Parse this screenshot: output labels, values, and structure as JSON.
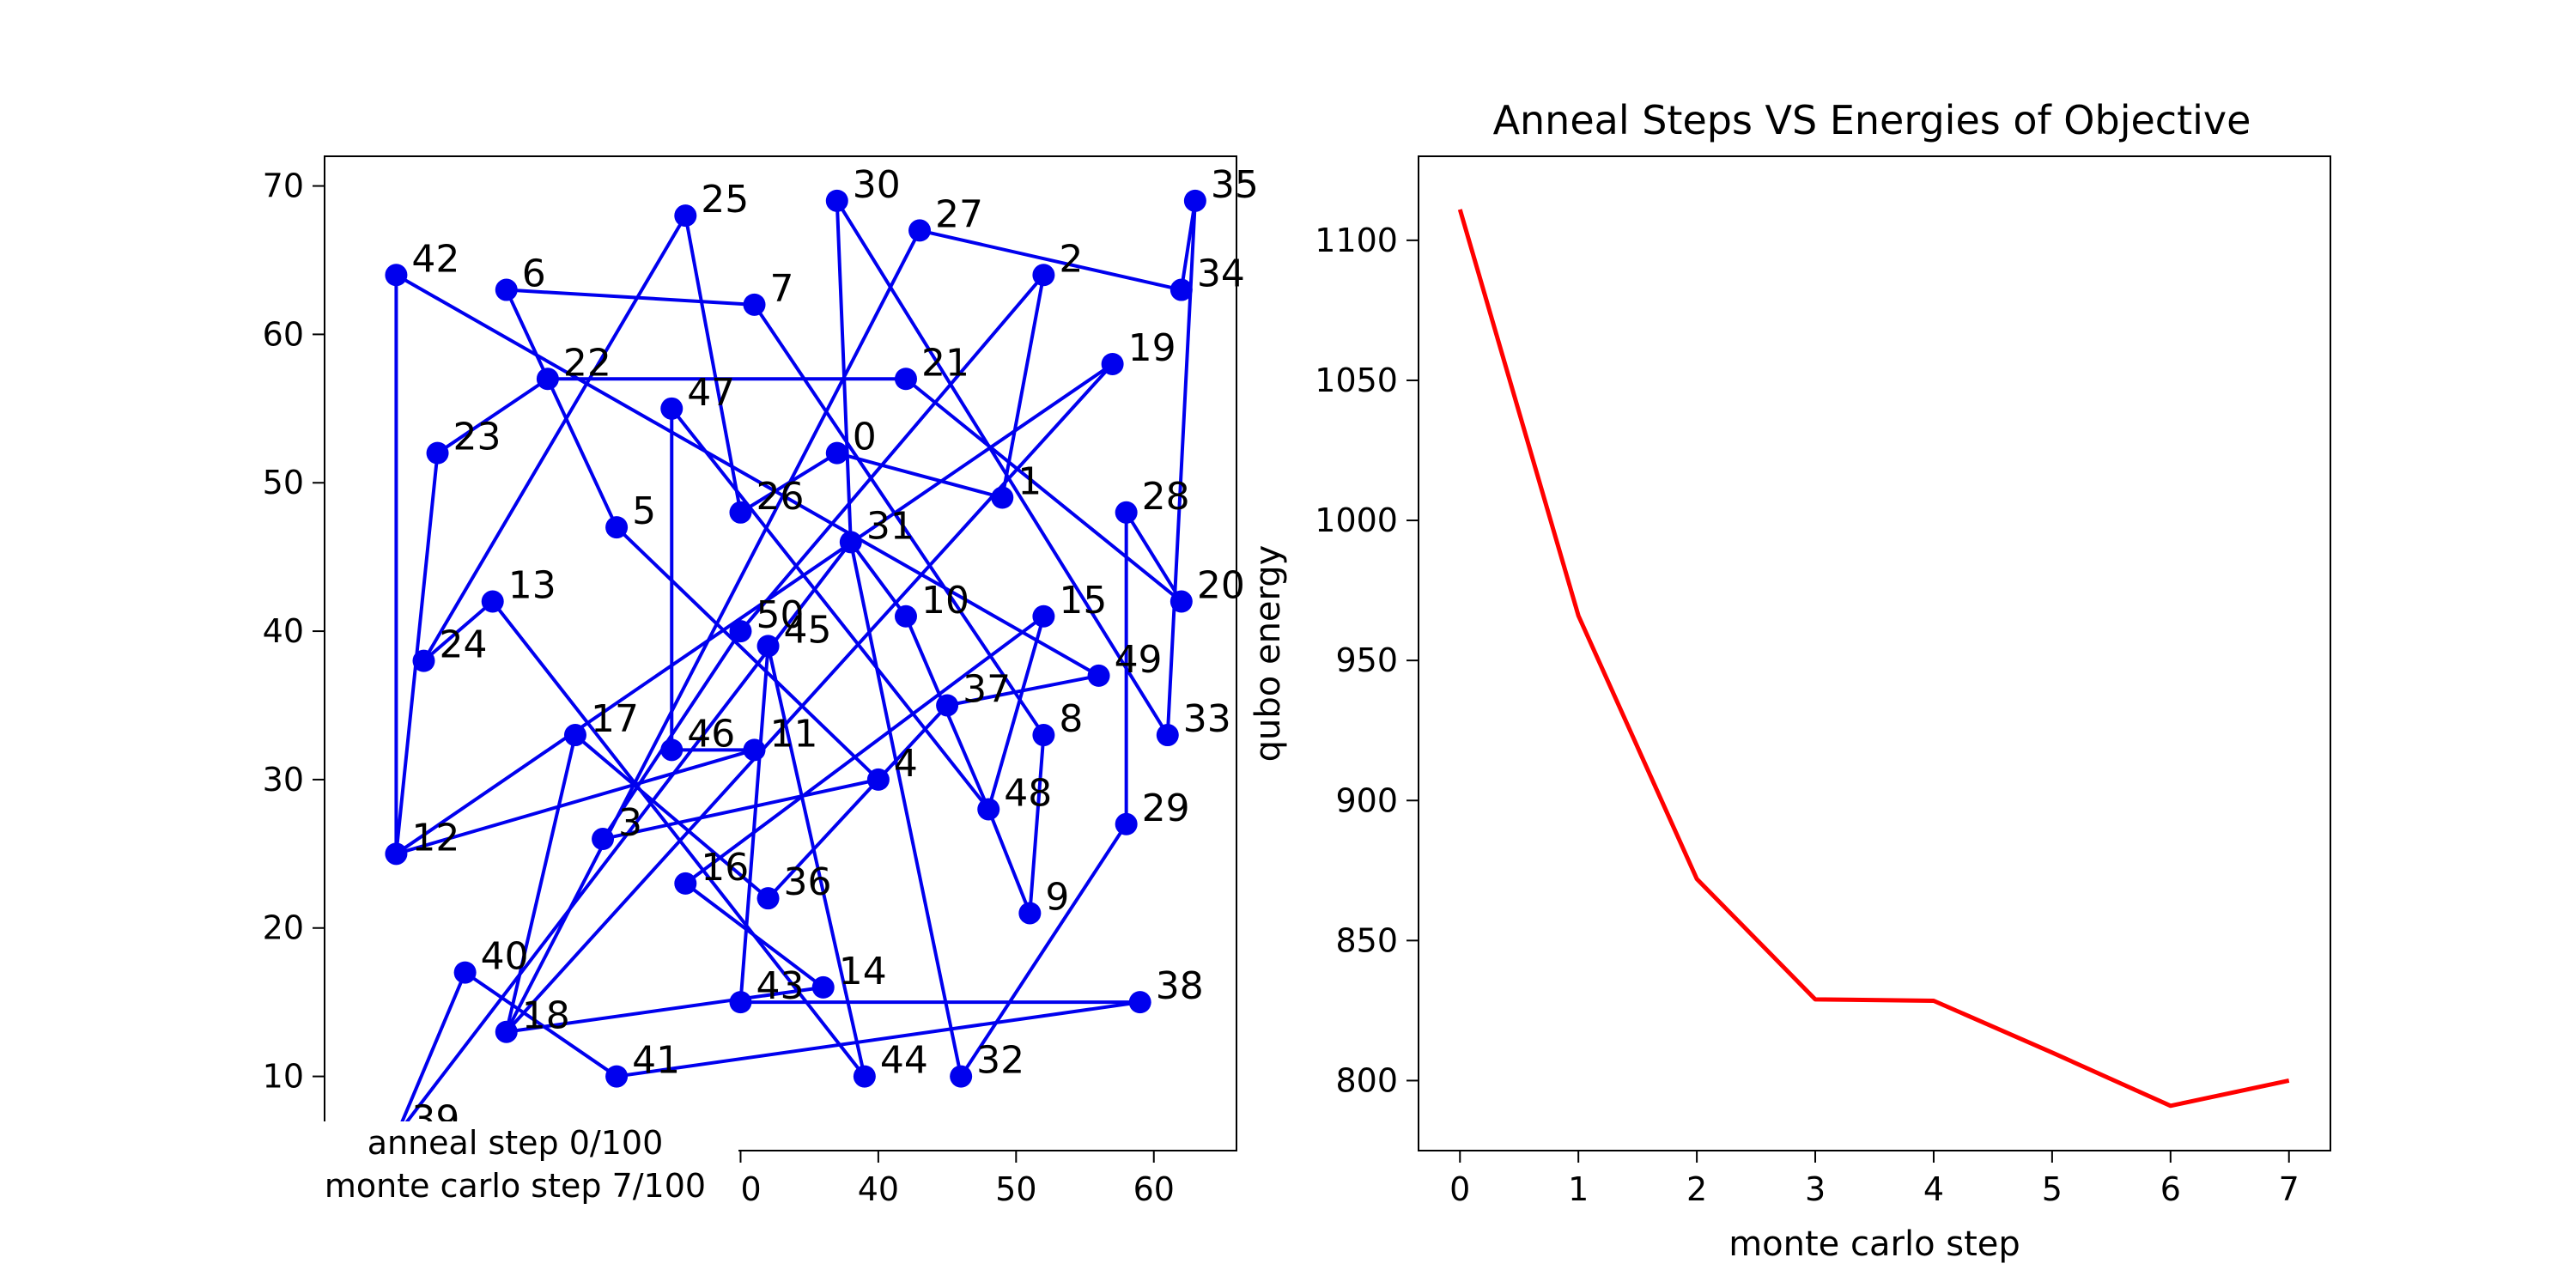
{
  "caption": {
    "anneal_step": "anneal step 0/100",
    "monte_carlo_step": "monte carlo step 7/100"
  },
  "chart_data": [
    {
      "type": "scatter",
      "title": "",
      "xlabel": "",
      "ylabel": "",
      "color": "#0000ee",
      "xlim": [
        -0.2,
        66
      ],
      "ylim": [
        5,
        72
      ],
      "xticks": [
        10,
        20,
        30,
        40,
        50,
        60
      ],
      "yticks": [
        10,
        20,
        30,
        40,
        50,
        60,
        70
      ],
      "points": [
        {
          "id": "0",
          "x": 37,
          "y": 52
        },
        {
          "id": "1",
          "x": 49,
          "y": 49
        },
        {
          "id": "2",
          "x": 52,
          "y": 64
        },
        {
          "id": "3",
          "x": 20,
          "y": 26
        },
        {
          "id": "4",
          "x": 40,
          "y": 30
        },
        {
          "id": "5",
          "x": 21,
          "y": 47
        },
        {
          "id": "6",
          "x": 13,
          "y": 63
        },
        {
          "id": "7",
          "x": 31,
          "y": 62
        },
        {
          "id": "8",
          "x": 52,
          "y": 33
        },
        {
          "id": "9",
          "x": 51,
          "y": 21
        },
        {
          "id": "10",
          "x": 42,
          "y": 41
        },
        {
          "id": "11",
          "x": 31,
          "y": 32
        },
        {
          "id": "12",
          "x": 5,
          "y": 25
        },
        {
          "id": "13",
          "x": 12,
          "y": 42
        },
        {
          "id": "14",
          "x": 36,
          "y": 16
        },
        {
          "id": "15",
          "x": 52,
          "y": 41
        },
        {
          "id": "16",
          "x": 26,
          "y": 23
        },
        {
          "id": "17",
          "x": 18,
          "y": 33
        },
        {
          "id": "18",
          "x": 13,
          "y": 13
        },
        {
          "id": "19",
          "x": 57,
          "y": 58
        },
        {
          "id": "20",
          "x": 62,
          "y": 42
        },
        {
          "id": "21",
          "x": 42,
          "y": 57
        },
        {
          "id": "22",
          "x": 16,
          "y": 57
        },
        {
          "id": "23",
          "x": 8,
          "y": 52
        },
        {
          "id": "24",
          "x": 7,
          "y": 38
        },
        {
          "id": "25",
          "x": 26,
          "y": 68
        },
        {
          "id": "26",
          "x": 30,
          "y": 48
        },
        {
          "id": "27",
          "x": 43,
          "y": 67
        },
        {
          "id": "28",
          "x": 58,
          "y": 48
        },
        {
          "id": "29",
          "x": 58,
          "y": 27
        },
        {
          "id": "30",
          "x": 37,
          "y": 69
        },
        {
          "id": "31",
          "x": 38,
          "y": 46
        },
        {
          "id": "32",
          "x": 46,
          "y": 10
        },
        {
          "id": "33",
          "x": 61,
          "y": 33
        },
        {
          "id": "34",
          "x": 62,
          "y": 63
        },
        {
          "id": "35",
          "x": 63,
          "y": 69
        },
        {
          "id": "36",
          "x": 32,
          "y": 22
        },
        {
          "id": "37",
          "x": 45,
          "y": 35
        },
        {
          "id": "38",
          "x": 59,
          "y": 15
        },
        {
          "id": "39",
          "x": 5,
          "y": 6
        },
        {
          "id": "40",
          "x": 10,
          "y": 17
        },
        {
          "id": "41",
          "x": 21,
          "y": 10
        },
        {
          "id": "42",
          "x": 5,
          "y": 64
        },
        {
          "id": "43",
          "x": 30,
          "y": 15
        },
        {
          "id": "44",
          "x": 39,
          "y": 10
        },
        {
          "id": "45",
          "x": 32,
          "y": 39
        },
        {
          "id": "46",
          "x": 25,
          "y": 32
        },
        {
          "id": "47",
          "x": 25,
          "y": 55
        },
        {
          "id": "48",
          "x": 48,
          "y": 28
        },
        {
          "id": "49",
          "x": 56,
          "y": 37
        },
        {
          "id": "50",
          "x": 30,
          "y": 40
        }
      ],
      "tour": [
        "39",
        "40",
        "41",
        "38",
        "43",
        "45",
        "44",
        "13",
        "24",
        "25",
        "26",
        "0",
        "1",
        "2",
        "50",
        "3",
        "4",
        "5",
        "6",
        "7",
        "8",
        "9",
        "48",
        "10",
        "31",
        "32",
        "29",
        "28",
        "20",
        "21",
        "22",
        "23",
        "12",
        "11",
        "46",
        "47",
        "48",
        "15",
        "16",
        "14",
        "18",
        "19",
        "12",
        "42",
        "49",
        "37",
        "36",
        "17",
        "18",
        "27",
        "34",
        "35",
        "33",
        "30",
        "31",
        "39"
      ]
    },
    {
      "type": "line",
      "title": "Anneal Steps VS Energies of Objective",
      "xlabel": "monte carlo step",
      "ylabel": "qubo energy",
      "color": "#ff0000",
      "xlim": [
        -0.35,
        7.35
      ],
      "ylim": [
        775,
        1130
      ],
      "xticks": [
        0,
        1,
        2,
        3,
        4,
        5,
        6,
        7
      ],
      "yticks": [
        800,
        850,
        900,
        950,
        1000,
        1050,
        1100
      ],
      "x": [
        0,
        1,
        2,
        3,
        4,
        5,
        6,
        7
      ],
      "y": [
        1111,
        966,
        872,
        829,
        828.5,
        810,
        791,
        800
      ]
    }
  ]
}
